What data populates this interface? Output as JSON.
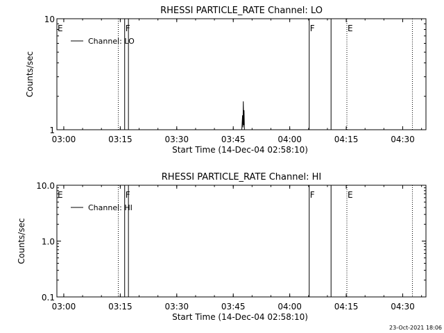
{
  "footer_timestamp": "23-Oct-2021 18:06",
  "chart_data": [
    {
      "type": "line",
      "title": "RHESSI PARTICLE_RATE Channel: LO",
      "xlabel": "Start Time (14-Dec-04 02:58:10)",
      "ylabel": "Counts/sec",
      "x_tick_labels": [
        "03:00",
        "03:15",
        "03:30",
        "03:45",
        "04:00",
        "04:15",
        "04:30"
      ],
      "x_ticks_min": [
        1.83,
        16.83,
        31.83,
        46.83,
        61.83,
        76.83,
        91.83
      ],
      "xlim_min": [
        0,
        98
      ],
      "y_scale": "log",
      "ylim": [
        1,
        10
      ],
      "y_tick_labels": [
        "1",
        "10"
      ],
      "y_ticks": [
        1,
        10
      ],
      "legend_entry": "Channel: LO",
      "legend_placement": "top-left",
      "series": [
        {
          "name": "Channel: LO",
          "x_min": [
            48.7,
            49.1,
            49.3,
            49.4,
            49.5,
            49.6,
            49.7,
            49.8,
            49.9,
            50.0
          ],
          "y": [
            1.0,
            1.0,
            1.35,
            1.05,
            1.8,
            1.1,
            1.5,
            1.0,
            1.0,
            1.0
          ]
        }
      ],
      "markers": [
        {
          "label": "E",
          "x_min": 0.0,
          "style": "dotted"
        },
        {
          "label": "",
          "x_min": 16.3,
          "style": "dotted"
        },
        {
          "label": "F",
          "x_min": 18.0,
          "style": "solid"
        },
        {
          "label": "",
          "x_min": 19.0,
          "style": "solid"
        },
        {
          "label": "F",
          "x_min": 67.0,
          "style": "solid"
        },
        {
          "label": "",
          "x_min": 72.8,
          "style": "solid"
        },
        {
          "label": "E",
          "x_min": 77.0,
          "style": "dotted"
        },
        {
          "label": "",
          "x_min": 94.4,
          "style": "dotted"
        }
      ]
    },
    {
      "type": "line",
      "title": "RHESSI PARTICLE_RATE Channel: HI",
      "xlabel": "Start Time (14-Dec-04 02:58:10)",
      "ylabel": "Counts/sec",
      "x_tick_labels": [
        "03:00",
        "03:15",
        "03:30",
        "03:45",
        "04:00",
        "04:15",
        "04:30"
      ],
      "x_ticks_min": [
        1.83,
        16.83,
        31.83,
        46.83,
        61.83,
        76.83,
        91.83
      ],
      "xlim_min": [
        0,
        98
      ],
      "y_scale": "log",
      "ylim": [
        0.1,
        10
      ],
      "y_tick_labels": [
        "0.1",
        "1.0",
        "10.0"
      ],
      "y_ticks": [
        0.1,
        1,
        10
      ],
      "legend_entry": "Channel: HI",
      "legend_placement": "top-left",
      "series": [],
      "markers": [
        {
          "label": "E",
          "x_min": 0.0,
          "style": "dotted"
        },
        {
          "label": "",
          "x_min": 16.3,
          "style": "dotted"
        },
        {
          "label": "F",
          "x_min": 18.0,
          "style": "solid"
        },
        {
          "label": "",
          "x_min": 19.0,
          "style": "solid"
        },
        {
          "label": "F",
          "x_min": 67.0,
          "style": "solid"
        },
        {
          "label": "",
          "x_min": 72.8,
          "style": "solid"
        },
        {
          "label": "E",
          "x_min": 77.0,
          "style": "dotted"
        },
        {
          "label": "",
          "x_min": 94.4,
          "style": "dotted"
        }
      ]
    }
  ]
}
